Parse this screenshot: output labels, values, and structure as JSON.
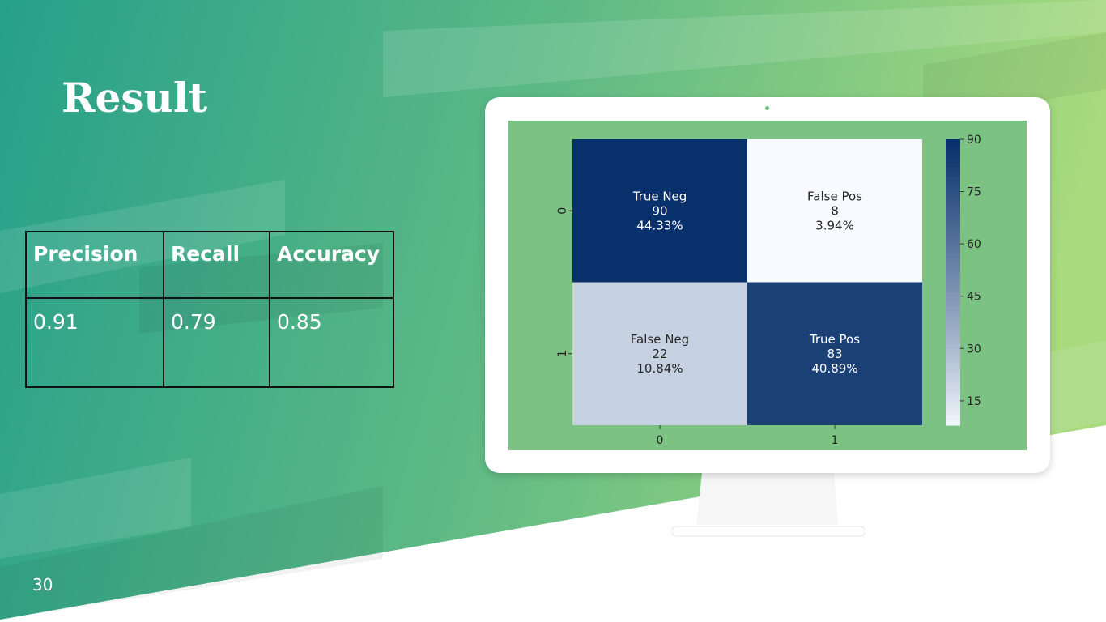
{
  "slide": {
    "title": "Result",
    "page_number": "30"
  },
  "metrics_table": {
    "headers": [
      "Precision",
      "Recall",
      "Accuracy"
    ],
    "values": [
      "0.91",
      "0.79",
      "0.85"
    ]
  },
  "colors": {
    "bg_gradient_start": "#26a08a",
    "bg_gradient_end": "#a8da7e",
    "screen_bg": "#7cc383",
    "heatmap_dark": "#08306b",
    "heatmap_light": "#f7fbff"
  },
  "chart_data": {
    "type": "heatmap",
    "rows": [
      "0",
      "1"
    ],
    "cols": [
      "0",
      "1"
    ],
    "cells": [
      {
        "row": 0,
        "col": 0,
        "name": "True Neg",
        "count": "90",
        "percent": "44.33%",
        "value": 90
      },
      {
        "row": 0,
        "col": 1,
        "name": "False Pos",
        "count": "8",
        "percent": "3.94%",
        "value": 8
      },
      {
        "row": 1,
        "col": 0,
        "name": "False Neg",
        "count": "22",
        "percent": "10.84%",
        "value": 22
      },
      {
        "row": 1,
        "col": 1,
        "name": "True Pos",
        "count": "83",
        "percent": "40.89%",
        "value": 83
      }
    ],
    "colorbar": {
      "min": 8,
      "max": 90,
      "ticks": [
        "90",
        "75",
        "60",
        "45",
        "30",
        "15"
      ],
      "colormap": "Blues"
    }
  }
}
